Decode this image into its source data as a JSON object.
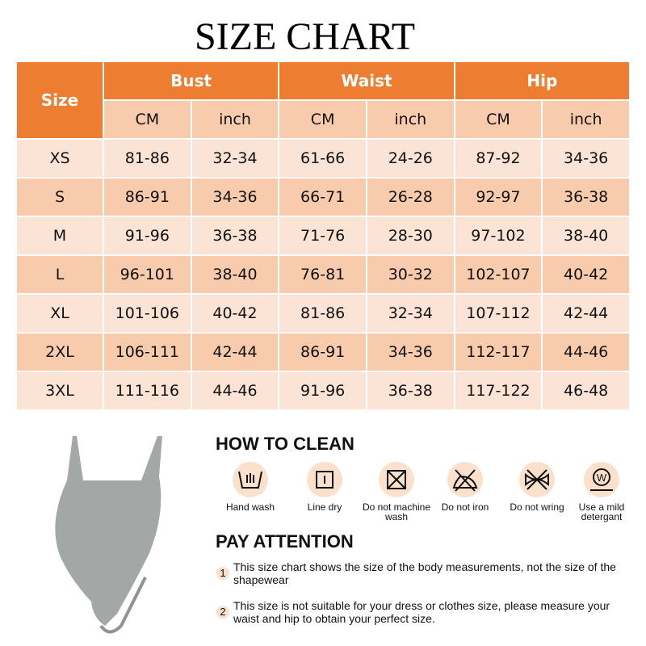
{
  "title": "SIZE CHART",
  "table": {
    "headers": {
      "size": "Size",
      "bust": "Bust",
      "waist": "Waist",
      "hip": "Hip"
    },
    "units": [
      "CM",
      "inch",
      "CM",
      "inch",
      "CM",
      "inch"
    ],
    "rows": [
      [
        "XS",
        "81-86",
        "32-34",
        "61-66",
        "24-26",
        "87-92",
        "34-36"
      ],
      [
        "S",
        "86-91",
        "34-36",
        "66-71",
        "26-28",
        "92-97",
        "36-38"
      ],
      [
        "M",
        "91-96",
        "36-38",
        "71-76",
        "28-30",
        "97-102",
        "38-40"
      ],
      [
        "L",
        "96-101",
        "38-40",
        "76-81",
        "30-32",
        "102-107",
        "40-42"
      ],
      [
        "XL",
        "101-106",
        "40-42",
        "81-86",
        "32-34",
        "107-112",
        "42-44"
      ],
      [
        "2XL",
        "106-111",
        "42-44",
        "86-91",
        "34-36",
        "112-117",
        "44-46"
      ],
      [
        "3XL",
        "111-116",
        "44-46",
        "91-96",
        "36-38",
        "117-122",
        "46-48"
      ]
    ]
  },
  "how_to_clean": {
    "heading": "HOW TO CLEAN",
    "items": [
      {
        "icon": "hand-wash-icon",
        "label": "Hand wash"
      },
      {
        "icon": "line-dry-icon",
        "label": "Line dry"
      },
      {
        "icon": "no-machine-wash-icon",
        "label": "Do not machine wash"
      },
      {
        "icon": "no-iron-icon",
        "label": "Do not iron"
      },
      {
        "icon": "no-wring-icon",
        "label": "Do not wring"
      },
      {
        "icon": "mild-detergent-icon",
        "label": "Use a mild detergant"
      }
    ]
  },
  "pay_attention": {
    "heading": "PAY ATTENTION",
    "notes": [
      {
        "num": "1",
        "text": "This size chart shows the size of the body measurements, not the size of the shapewear"
      },
      {
        "num": "2",
        "text": "This size is not suitable for your dress or clothes size, please measure your waist and hip to obtain your perfect size."
      }
    ]
  },
  "colors": {
    "header": "#ED7D31",
    "row_dark": "#F8CBAD",
    "row_light": "#FBE4D5",
    "product": "#A3A8A6"
  }
}
